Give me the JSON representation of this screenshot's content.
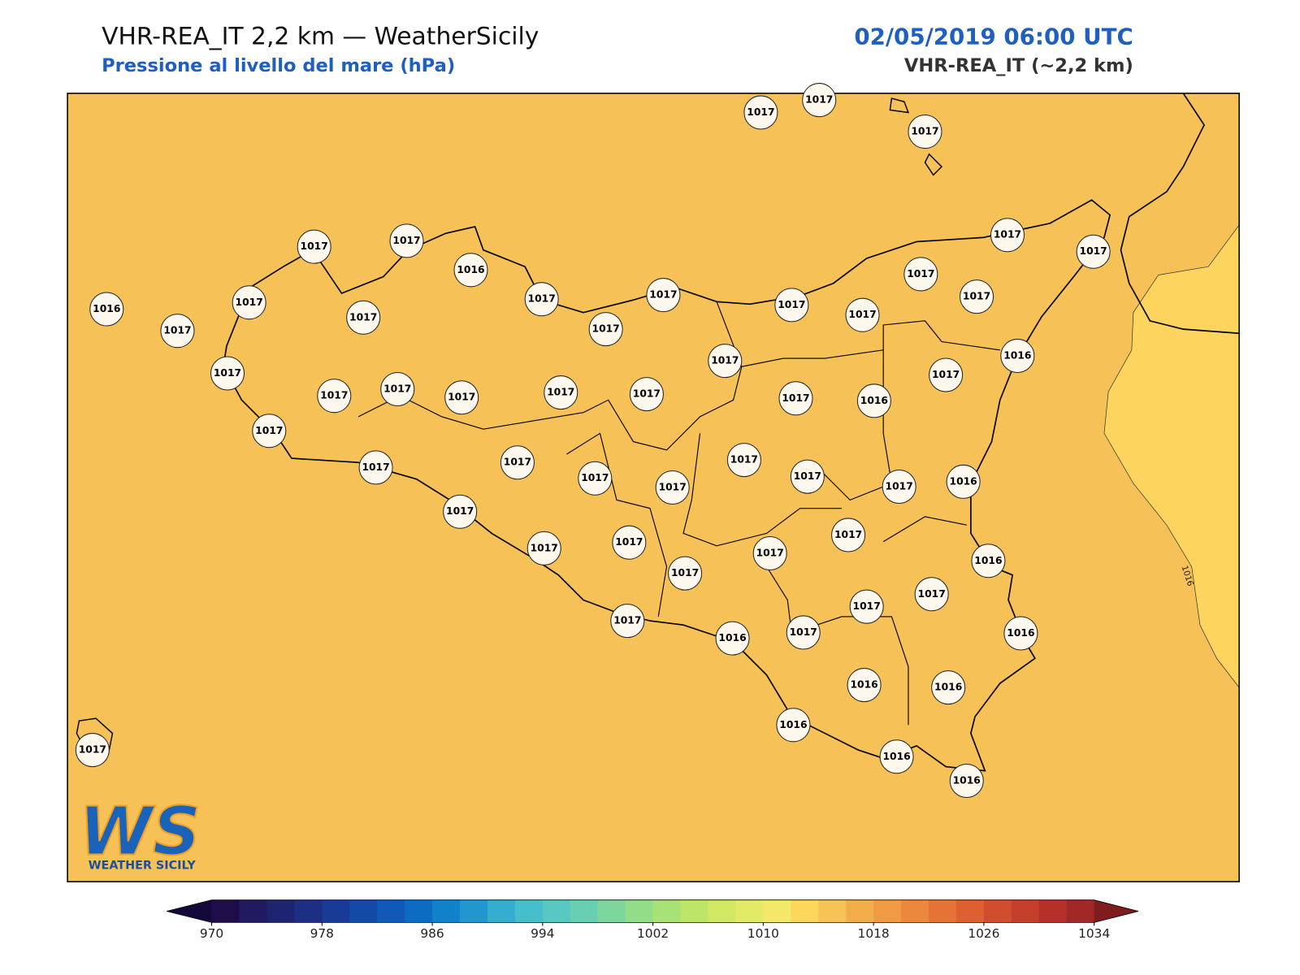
{
  "header": {
    "title": "VHR-REA_IT 2,2 km — WeatherSicily",
    "subtitle": "Pressione al livello del mare (hPa)",
    "datetime": "02/05/2019 06:00 UTC",
    "model": "VHR-REA_IT (~2,2 km)"
  },
  "stations": [
    1017,
    1017,
    1017,
    1017,
    1017,
    1016,
    1017,
    1017,
    1016,
    1017,
    1017,
    1017,
    1017,
    1017,
    1017,
    1017,
    1017,
    1017,
    1017,
    1016,
    1017,
    1017,
    1017,
    1017,
    1017,
    1017,
    1017,
    1017,
    1016,
    1017,
    1017,
    1017,
    1017,
    1017,
    1017,
    1017,
    1017,
    1017,
    1016,
    1017,
    1017,
    1017,
    1017,
    1017,
    1017,
    1016,
    1017,
    1017,
    1017,
    1016,
    1017,
    1016,
    1016,
    1016,
    1016,
    1016,
    1016,
    1017
  ],
  "contour_label": "1016",
  "colorbar": {
    "min": 970,
    "max": 1034,
    "ticks": [
      970,
      978,
      986,
      994,
      1002,
      1010,
      1018,
      1026,
      1034
    ],
    "colors": [
      "#1f0d4a",
      "#221a60",
      "#1f2470",
      "#1c2f85",
      "#173b97",
      "#134aa8",
      "#1059b8",
      "#0c6cc4",
      "#1082cc",
      "#2097cf",
      "#33aecf",
      "#45bfcc",
      "#57c8c1",
      "#68d0b0",
      "#7dd79c",
      "#93dc88",
      "#a8e275",
      "#bde566",
      "#d1e863",
      "#e3ea66",
      "#f4e868",
      "#fcd75c",
      "#f7c355",
      "#f3ae4c",
      "#f09b43",
      "#ec873c",
      "#e67335",
      "#de6030",
      "#d24d2d",
      "#c53d2b",
      "#b63029",
      "#a12726"
    ],
    "under_color": "#14093a",
    "over_color": "#7e1c1e"
  },
  "logo": {
    "mark": "WS",
    "text": "WEATHER SICILY"
  }
}
